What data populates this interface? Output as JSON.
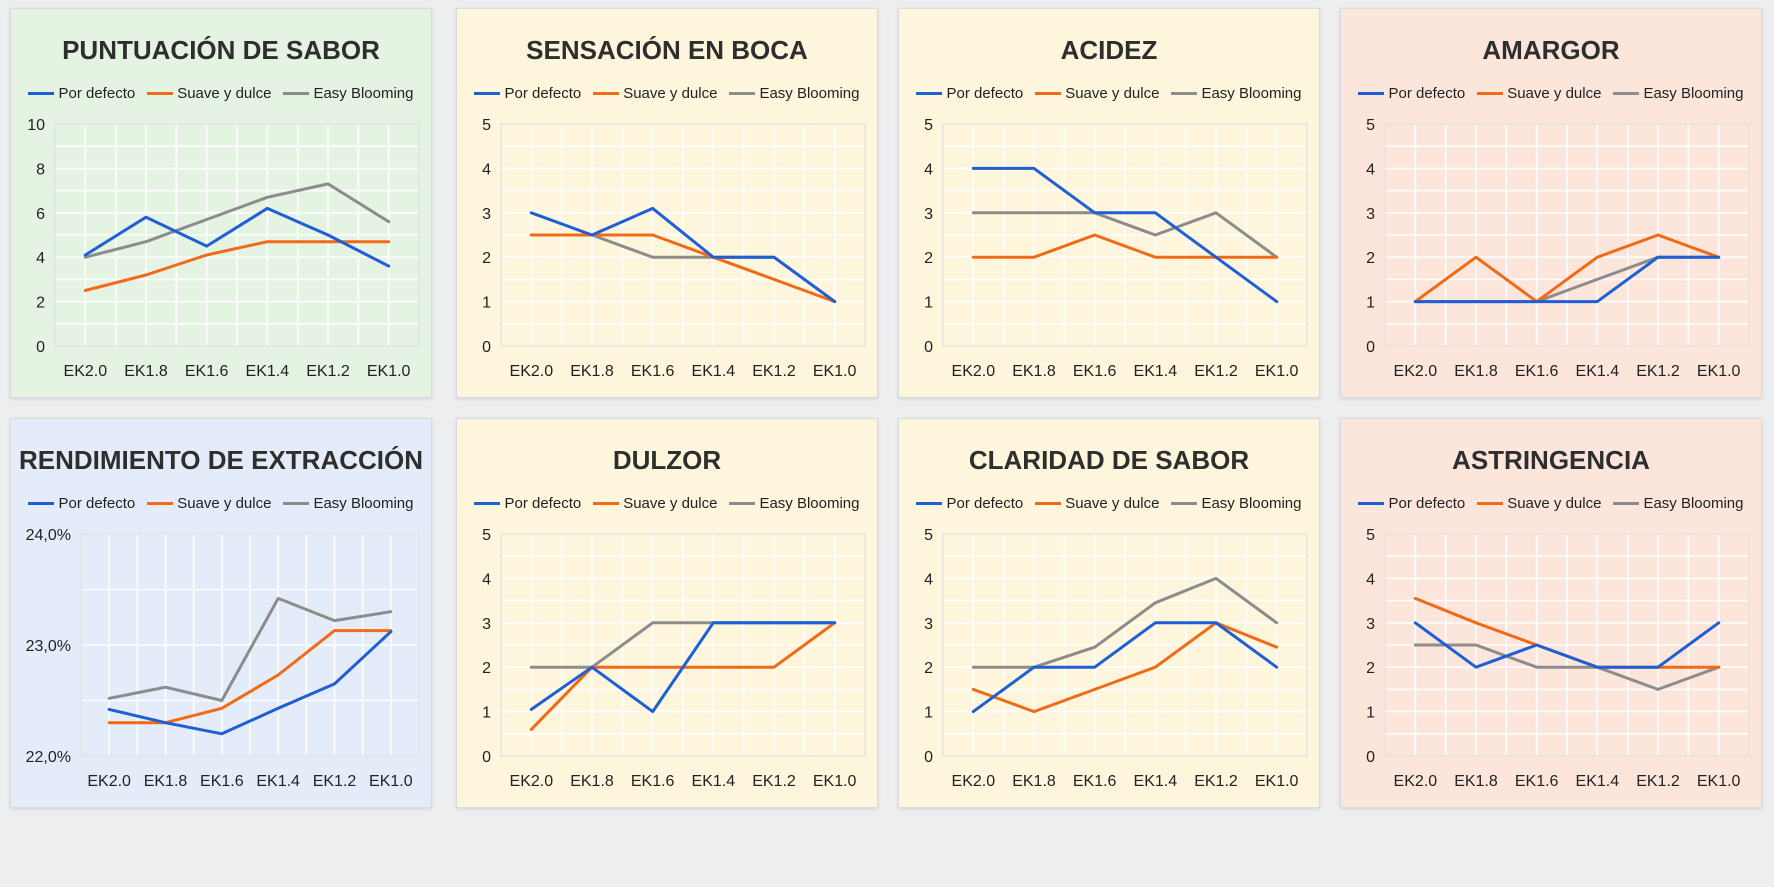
{
  "series_names": [
    "Por defecto",
    "Suave y dulce",
    "Easy Blooming"
  ],
  "series_colors": [
    "#1f5fd6",
    "#f26a16",
    "#8c8c8c"
  ],
  "panel_backgrounds": {
    "green": "#e5f3e3",
    "yellow": "#fdf6dc",
    "pink": "#fce6dc",
    "blue": "#e4ecf9"
  },
  "chart_data": [
    {
      "type": "line",
      "title": "PUNTUACIÓN DE SABOR",
      "background": "green",
      "categories": [
        "EK2.0",
        "EK1.8",
        "EK1.6",
        "EK1.4",
        "EK1.2",
        "EK1.0"
      ],
      "yticks": [
        "0",
        "2",
        "4",
        "6",
        "8",
        "10"
      ],
      "ylim": [
        0,
        10
      ],
      "grid": true,
      "legend": "top",
      "series": [
        {
          "name": "Por defecto",
          "values": [
            4.1,
            5.8,
            4.5,
            6.2,
            5.0,
            3.6
          ]
        },
        {
          "name": "Suave y dulce",
          "values": [
            2.5,
            3.2,
            4.1,
            4.7,
            4.7,
            4.7
          ]
        },
        {
          "name": "Easy Blooming",
          "values": [
            4.0,
            4.7,
            5.7,
            6.7,
            7.3,
            5.6
          ]
        }
      ]
    },
    {
      "type": "line",
      "title": "SENSACIÓN EN BOCA",
      "background": "yellow",
      "categories": [
        "EK2.0",
        "EK1.8",
        "EK1.6",
        "EK1.4",
        "EK1.2",
        "EK1.0"
      ],
      "yticks": [
        "0",
        "1",
        "2",
        "3",
        "4",
        "5"
      ],
      "ylim": [
        0,
        5
      ],
      "grid": true,
      "legend": "top",
      "series": [
        {
          "name": "Por defecto",
          "values": [
            3.0,
            2.5,
            3.1,
            2.0,
            2.0,
            1.0
          ]
        },
        {
          "name": "Suave y dulce",
          "values": [
            2.5,
            2.5,
            2.5,
            2.0,
            1.5,
            1.0
          ]
        },
        {
          "name": "Easy Blooming",
          "values": [
            2.5,
            2.5,
            2.0,
            2.0,
            2.0,
            1.0
          ]
        }
      ]
    },
    {
      "type": "line",
      "title": "ACIDEZ",
      "background": "yellow",
      "categories": [
        "EK2.0",
        "EK1.8",
        "EK1.6",
        "EK1.4",
        "EK1.2",
        "EK1.0"
      ],
      "yticks": [
        "0",
        "1",
        "2",
        "3",
        "4",
        "5"
      ],
      "ylim": [
        0,
        5
      ],
      "grid": true,
      "legend": "top",
      "series": [
        {
          "name": "Por defecto",
          "values": [
            4.0,
            4.0,
            3.0,
            3.0,
            2.0,
            1.0
          ]
        },
        {
          "name": "Suave y dulce",
          "values": [
            2.0,
            2.0,
            2.5,
            2.0,
            2.0,
            2.0
          ]
        },
        {
          "name": "Easy Blooming",
          "values": [
            3.0,
            3.0,
            3.0,
            2.5,
            3.0,
            2.0
          ]
        }
      ]
    },
    {
      "type": "line",
      "title": "AMARGOR",
      "background": "pink",
      "categories": [
        "EK2.0",
        "EK1.8",
        "EK1.6",
        "EK1.4",
        "EK1.2",
        "EK1.0"
      ],
      "yticks": [
        "0",
        "1",
        "2",
        "3",
        "4",
        "5"
      ],
      "ylim": [
        0,
        5
      ],
      "grid": true,
      "legend": "top",
      "series": [
        {
          "name": "Por defecto",
          "values": [
            1.0,
            1.0,
            1.0,
            1.0,
            2.0,
            2.0
          ]
        },
        {
          "name": "Suave y dulce",
          "values": [
            1.0,
            2.0,
            1.0,
            2.0,
            2.5,
            2.0
          ]
        },
        {
          "name": "Easy Blooming",
          "values": [
            1.0,
            1.0,
            1.0,
            1.5,
            2.0,
            2.0
          ]
        }
      ]
    },
    {
      "type": "line",
      "title": "RENDIMIENTO DE EXTRACCIÓN",
      "background": "blue",
      "categories": [
        "EK2.0",
        "EK1.8",
        "EK1.6",
        "EK1.4",
        "EK1.2",
        "EK1.0"
      ],
      "yticks": [
        "22,0%",
        "23,0%",
        "24,0%"
      ],
      "ylim": [
        22.0,
        24.0
      ],
      "grid": true,
      "legend": "top",
      "series": [
        {
          "name": "Por defecto",
          "values": [
            22.42,
            22.3,
            22.2,
            22.43,
            22.65,
            23.12
          ]
        },
        {
          "name": "Suave y dulce",
          "values": [
            22.3,
            22.3,
            22.43,
            22.73,
            23.13,
            23.13
          ]
        },
        {
          "name": "Easy Blooming",
          "values": [
            22.52,
            22.62,
            22.5,
            23.42,
            23.22,
            23.3
          ]
        }
      ]
    },
    {
      "type": "line",
      "title": "DULZOR",
      "background": "yellow",
      "categories": [
        "EK2.0",
        "EK1.8",
        "EK1.6",
        "EK1.4",
        "EK1.2",
        "EK1.0"
      ],
      "yticks": [
        "0",
        "1",
        "2",
        "3",
        "4",
        "5"
      ],
      "ylim": [
        0,
        5
      ],
      "grid": true,
      "legend": "top",
      "series": [
        {
          "name": "Por defecto",
          "values": [
            1.05,
            2.0,
            1.0,
            3.0,
            3.0,
            3.0
          ]
        },
        {
          "name": "Suave y dulce",
          "values": [
            0.6,
            2.0,
            2.0,
            2.0,
            2.0,
            3.0
          ]
        },
        {
          "name": "Easy Blooming",
          "values": [
            2.0,
            2.0,
            3.0,
            3.0,
            3.0,
            3.0
          ]
        }
      ]
    },
    {
      "type": "line",
      "title": "CLARIDAD DE SABOR",
      "background": "yellow",
      "categories": [
        "EK2.0",
        "EK1.8",
        "EK1.6",
        "EK1.4",
        "EK1.2",
        "EK1.0"
      ],
      "yticks": [
        "0",
        "1",
        "2",
        "3",
        "4",
        "5"
      ],
      "ylim": [
        0,
        5
      ],
      "grid": true,
      "legend": "top",
      "series": [
        {
          "name": "Por defecto",
          "values": [
            1.0,
            2.0,
            2.0,
            3.0,
            3.0,
            2.0
          ]
        },
        {
          "name": "Suave y dulce",
          "values": [
            1.5,
            1.0,
            1.5,
            2.0,
            3.0,
            2.45
          ]
        },
        {
          "name": "Easy Blooming",
          "values": [
            2.0,
            2.0,
            2.45,
            3.45,
            4.0,
            3.0
          ]
        }
      ]
    },
    {
      "type": "line",
      "title": "ASTRINGENCIA",
      "background": "pink",
      "categories": [
        "EK2.0",
        "EK1.8",
        "EK1.6",
        "EK1.4",
        "EK1.2",
        "EK1.0"
      ],
      "yticks": [
        "0",
        "1",
        "2",
        "3",
        "4",
        "5"
      ],
      "ylim": [
        0,
        5
      ],
      "grid": true,
      "legend": "top",
      "series": [
        {
          "name": "Por defecto",
          "values": [
            3.0,
            2.0,
            2.5,
            2.0,
            2.0,
            3.0
          ]
        },
        {
          "name": "Suave y dulce",
          "values": [
            3.55,
            3.0,
            2.5,
            2.0,
            2.0,
            2.0
          ]
        },
        {
          "name": "Easy Blooming",
          "values": [
            2.5,
            2.5,
            2.0,
            2.0,
            1.5,
            2.0
          ]
        }
      ]
    }
  ]
}
